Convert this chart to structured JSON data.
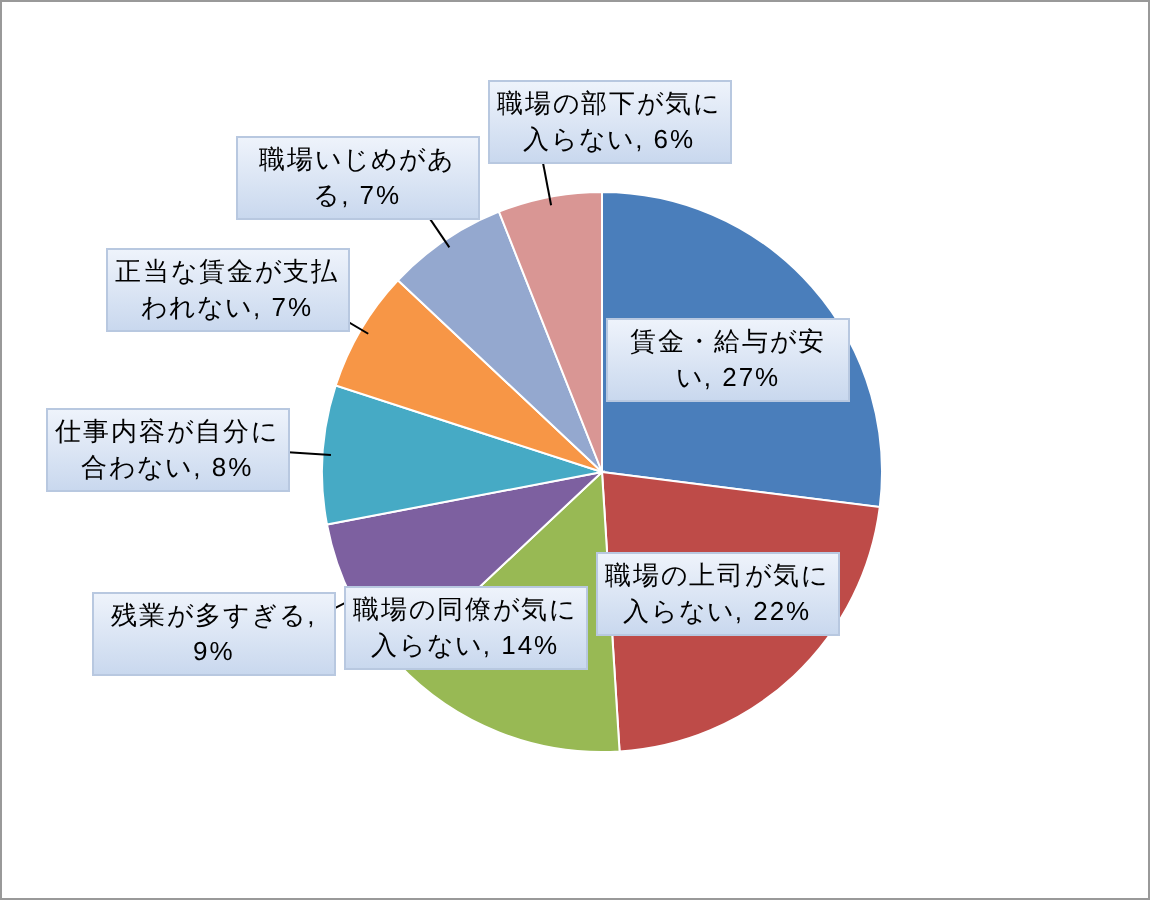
{
  "chart_data": {
    "type": "pie",
    "categories": [
      "賃金・給与が安い",
      "職場の上司が気に入らない",
      "職場の同僚が気に入らない",
      "残業が多すぎる",
      "仕事内容が自分に合わない",
      "正当な賃金が支払われない",
      "職場いじめがある",
      "職場の部下が気に入らない"
    ],
    "values": [
      27,
      22,
      14,
      9,
      8,
      7,
      7,
      6
    ],
    "value_labels": [
      ", 27%",
      ", 22%",
      ", 14%",
      ", 9%",
      ", 8%",
      ", 7%",
      ", 7%",
      ", 6%"
    ],
    "colors": [
      "#4a7ebb",
      "#be4b48",
      "#98b954",
      "#7d60a0",
      "#46aac5",
      "#f79646",
      "#94a8cf",
      "#d99694"
    ]
  }
}
